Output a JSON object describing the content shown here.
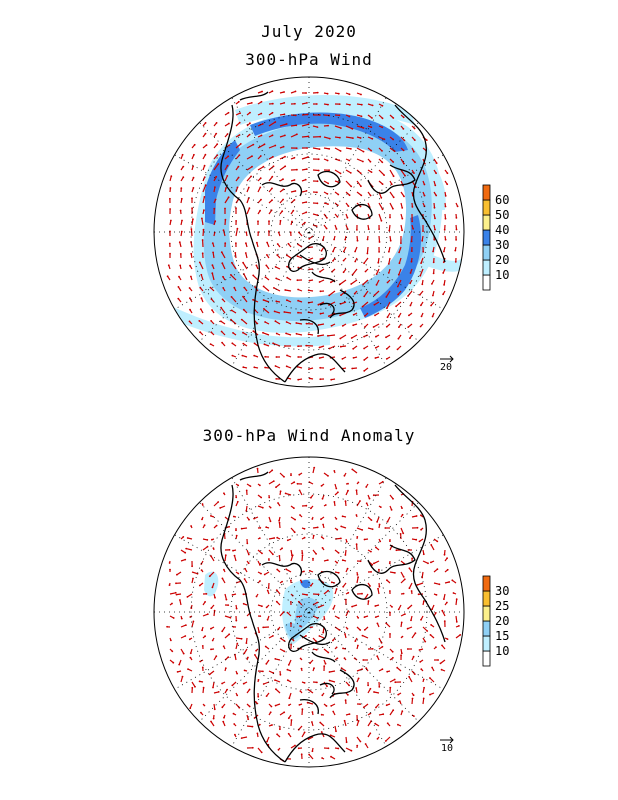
{
  "titles": {
    "month": "July 2020",
    "top": "300-hPa Wind",
    "bottom": "300-hPa Wind Anomaly"
  },
  "top_map": {
    "colorbar": {
      "labels": [
        "10",
        "20",
        "30",
        "40",
        "50",
        "60"
      ],
      "colors": [
        "#ffffff",
        "#bfefff",
        "#8fd0f5",
        "#3a82e8",
        "#fcf08c",
        "#f9bf30",
        "#f06a10"
      ]
    },
    "reference_vector": "20"
  },
  "bottom_map": {
    "colorbar": {
      "labels": [
        "10",
        "15",
        "20",
        "25",
        "30"
      ],
      "colors": [
        "#ffffff",
        "#bfefff",
        "#8fd0f5",
        "#fcf08c",
        "#f9bf30",
        "#f06a10"
      ]
    },
    "reference_vector": "10"
  },
  "style": {
    "vector_color": "#cc0000",
    "coast_color": "#000000",
    "grid_color": "#000000"
  }
}
